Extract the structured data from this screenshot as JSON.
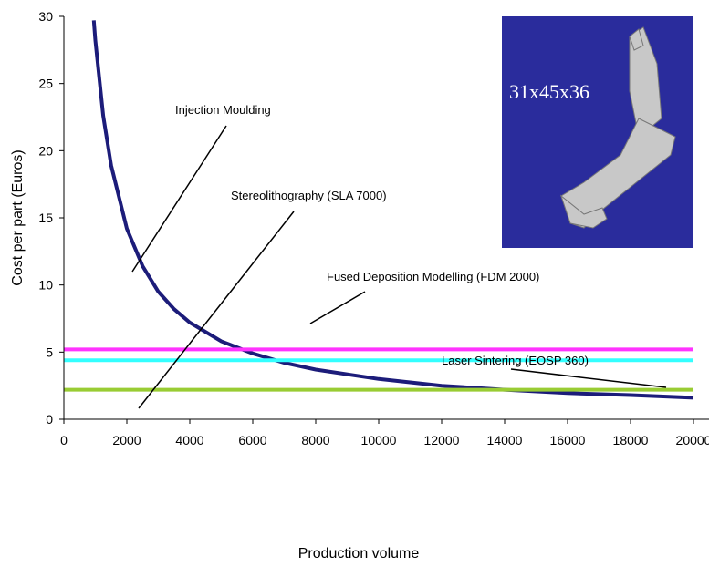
{
  "chart_data": {
    "type": "line",
    "ylabel": "Cost per part (Euros)",
    "xlabel": "Production volume",
    "xlim": [
      0,
      20000
    ],
    "xticks": [
      0,
      2000,
      4000,
      6000,
      8000,
      10000,
      12000,
      14000,
      16000,
      18000,
      20000
    ],
    "ylim": [
      0,
      30
    ],
    "yticks": [
      0,
      5,
      10,
      15,
      20,
      25,
      30
    ],
    "inset_label": "31x45x36",
    "series": [
      {
        "name": "Injection Moulding",
        "color": "#1c1c7a",
        "x": [
          950,
          1000,
          1250,
          1500,
          2000,
          2500,
          3000,
          3500,
          4000,
          5000,
          6000,
          7000,
          8000,
          10000,
          12000,
          14000,
          16000,
          18000,
          20000
        ],
        "values": [
          29.7,
          28.2,
          22.6,
          18.9,
          14.2,
          11.4,
          9.5,
          8.2,
          7.2,
          5.8,
          4.9,
          4.2,
          3.7,
          3.0,
          2.5,
          2.2,
          1.95,
          1.8,
          1.6
        ]
      },
      {
        "name": "Stereolithography (SLA 7000)",
        "color": "#ff33ff",
        "x": [
          0,
          20000
        ],
        "values": [
          5.2,
          5.2
        ]
      },
      {
        "name": "Fused Deposition Modelling (FDM 2000)",
        "color": "#33ffff",
        "x": [
          0,
          20000
        ],
        "values": [
          4.4,
          4.4
        ]
      },
      {
        "name": "Laser Sintering (EOSP 360)",
        "color": "#99cc33",
        "x": [
          0,
          20000
        ],
        "values": [
          2.2,
          2.2
        ]
      }
    ]
  }
}
